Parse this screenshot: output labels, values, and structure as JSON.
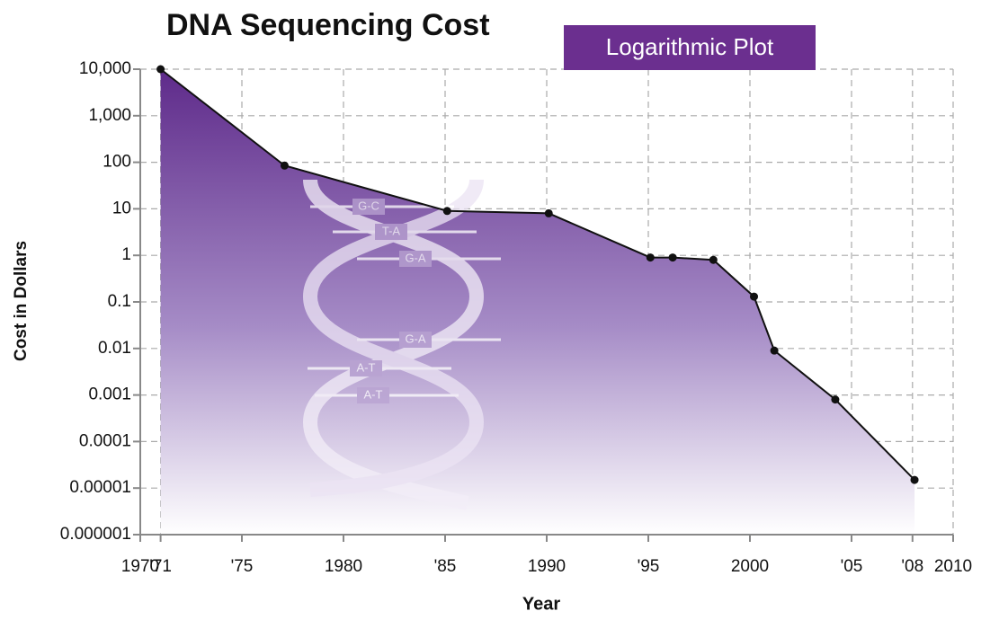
{
  "chart_data": {
    "type": "area",
    "title": "DNA Sequencing Cost",
    "subtitle": "Logarithmic Plot",
    "x_label": "Year",
    "y_label": "Cost in Dollars",
    "x": [
      1971,
      1977.1,
      1985.1,
      1990.1,
      1995.1,
      1996.2,
      1998.2,
      2000.2,
      2001.2,
      2004.2,
      2008.1
    ],
    "values": [
      10000,
      85,
      9,
      8,
      0.9,
      0.9,
      0.8,
      0.13,
      0.009,
      0.0008,
      1.5e-05
    ],
    "color": "#5e2a8a",
    "line_color": "#111111",
    "xlim": [
      1970,
      2010
    ],
    "xticks": [
      1970,
      {
        "value": 1971,
        "label": "'71"
      },
      {
        "value": 1975,
        "label": "'75"
      },
      1980,
      {
        "value": 1985,
        "label": "'85"
      },
      1990,
      {
        "value": 1995,
        "label": "'95"
      },
      2000,
      {
        "value": 2005,
        "label": "'05"
      },
      {
        "value": 2008,
        "label": "'08"
      },
      2010
    ],
    "ylim": [
      1e-06,
      10000
    ],
    "yticks": [
      {
        "value": 10000,
        "label": "10,000"
      },
      {
        "value": 1000,
        "label": "1,000"
      },
      100,
      10,
      1,
      0.1,
      0.01,
      0.001,
      0.0001,
      1e-05,
      1e-06
    ],
    "yscale": "log",
    "grid": true,
    "annotations": [
      "G-C",
      "T-A",
      "G-A",
      "G-A",
      "A-T",
      "A-T"
    ]
  }
}
